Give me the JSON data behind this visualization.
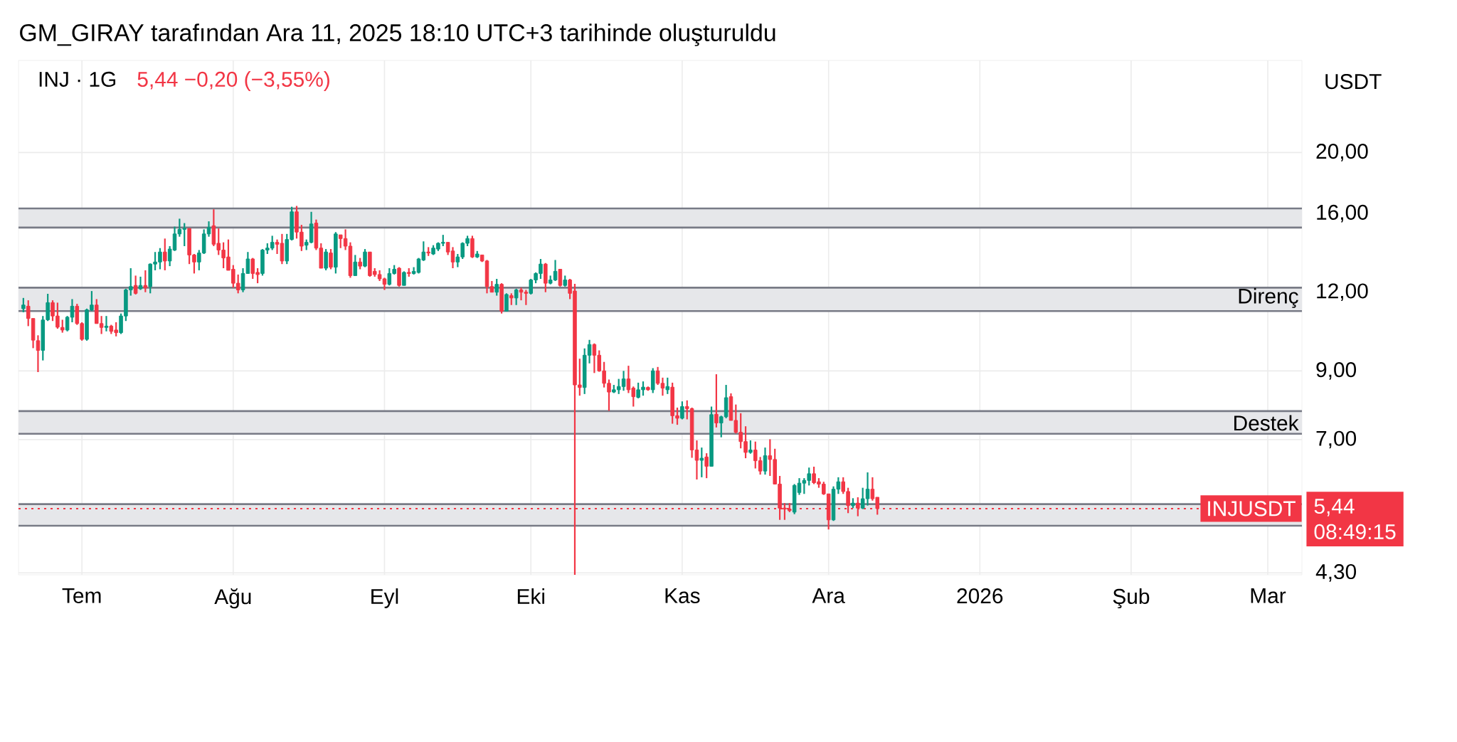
{
  "chart_data": {
    "type": "candlestick",
    "title": "INJ · 1G",
    "subtitle": "5,44  −0,20 (−3,55%)",
    "ylabel": "USDT",
    "annotations": [
      "GM_GIRAY tarafından Ara 11, 2025 18:10 UTC+3 tarihinde oluşturuldu",
      "5,44",
      "08:49:15"
    ],
    "x": [
      "2025-06-19",
      "2025-06-20",
      "2025-06-21",
      "2025-06-22",
      "2025-06-23",
      "2025-06-24",
      "2025-06-25",
      "2025-06-26",
      "2025-06-27",
      "2025-06-28",
      "2025-06-29",
      "2025-06-30",
      "2025-07-01",
      "2025-07-02",
      "2025-07-03",
      "2025-07-04",
      "2025-07-05",
      "2025-07-06",
      "2025-07-07",
      "2025-07-08",
      "2025-07-09",
      "2025-07-10",
      "2025-07-11",
      "2025-07-12",
      "2025-07-13",
      "2025-07-14",
      "2025-07-15",
      "2025-07-16",
      "2025-07-17",
      "2025-07-18",
      "2025-07-19",
      "2025-07-20",
      "2025-07-21",
      "2025-07-22",
      "2025-07-23",
      "2025-07-24",
      "2025-07-25",
      "2025-07-26",
      "2025-07-27",
      "2025-07-28",
      "2025-07-29",
      "2025-07-30",
      "2025-07-31",
      "2025-08-01",
      "2025-08-02",
      "2025-08-03",
      "2025-08-04",
      "2025-08-05",
      "2025-08-06",
      "2025-08-07",
      "2025-08-08",
      "2025-08-09",
      "2025-08-10",
      "2025-08-11",
      "2025-08-12",
      "2025-08-13",
      "2025-08-14",
      "2025-08-15",
      "2025-08-16",
      "2025-08-17",
      "2025-08-18",
      "2025-08-19",
      "2025-08-20",
      "2025-08-21",
      "2025-08-22",
      "2025-08-23",
      "2025-08-24",
      "2025-08-25",
      "2025-08-26",
      "2025-08-27",
      "2025-08-28",
      "2025-08-29",
      "2025-08-30",
      "2025-08-31",
      "2025-09-01",
      "2025-09-02",
      "2025-09-03",
      "2025-09-04",
      "2025-09-05",
      "2025-09-06",
      "2025-09-07",
      "2025-09-08",
      "2025-09-09",
      "2025-09-10",
      "2025-09-11",
      "2025-09-12",
      "2025-09-13",
      "2025-09-14",
      "2025-09-15",
      "2025-09-16",
      "2025-09-17",
      "2025-09-18",
      "2025-09-19",
      "2025-09-20",
      "2025-09-21",
      "2025-09-22",
      "2025-09-23",
      "2025-09-24",
      "2025-09-25",
      "2025-09-26",
      "2025-09-27",
      "2025-09-28",
      "2025-09-29",
      "2025-09-30",
      "2025-10-01",
      "2025-10-02",
      "2025-10-03",
      "2025-10-04",
      "2025-10-05",
      "2025-10-06",
      "2025-10-07",
      "2025-10-08",
      "2025-10-09",
      "2025-10-10",
      "2025-10-11",
      "2025-10-12",
      "2025-10-13",
      "2025-10-14",
      "2025-10-15",
      "2025-10-16",
      "2025-10-17",
      "2025-10-18",
      "2025-10-19",
      "2025-10-20",
      "2025-10-21",
      "2025-10-22",
      "2025-10-23",
      "2025-10-24",
      "2025-10-25",
      "2025-10-26",
      "2025-10-27",
      "2025-10-28",
      "2025-10-29",
      "2025-10-30",
      "2025-10-31",
      "2025-11-01",
      "2025-11-02",
      "2025-11-03",
      "2025-11-04",
      "2025-11-05",
      "2025-11-06",
      "2025-11-07",
      "2025-11-08",
      "2025-11-09",
      "2025-11-10",
      "2025-11-11",
      "2025-11-12",
      "2025-11-13",
      "2025-11-14",
      "2025-11-15",
      "2025-11-16",
      "2025-11-17",
      "2025-11-18",
      "2025-11-19",
      "2025-11-20",
      "2025-11-21",
      "2025-11-22",
      "2025-11-23",
      "2025-11-24",
      "2025-11-25",
      "2025-11-26",
      "2025-11-27",
      "2025-11-28",
      "2025-11-29",
      "2025-11-30",
      "2025-12-01",
      "2025-12-02",
      "2025-12-03",
      "2025-12-04",
      "2025-12-05",
      "2025-12-06",
      "2025-12-07",
      "2025-12-08",
      "2025-12-09",
      "2025-12-10",
      "2025-12-11"
    ],
    "ohlc": [
      [
        11.3,
        11.75,
        11.15,
        11.45
      ],
      [
        11.4,
        11.65,
        10.6,
        10.9
      ],
      [
        10.9,
        10.9,
        9.78,
        10.07
      ],
      [
        10.05,
        10.25,
        8.96,
        9.7
      ],
      [
        9.7,
        11.0,
        9.35,
        10.84
      ],
      [
        10.85,
        11.93,
        10.8,
        11.55
      ],
      [
        11.55,
        11.65,
        10.8,
        11.0
      ],
      [
        11.0,
        11.55,
        10.5,
        10.56
      ],
      [
        10.55,
        10.85,
        10.35,
        10.45
      ],
      [
        10.45,
        11.0,
        10.4,
        10.95
      ],
      [
        10.95,
        11.7,
        10.75,
        11.4
      ],
      [
        11.4,
        11.5,
        10.65,
        10.7
      ],
      [
        10.7,
        10.75,
        10.05,
        10.1
      ],
      [
        10.1,
        11.3,
        10.05,
        11.25
      ],
      [
        11.25,
        12.05,
        11.2,
        11.45
      ],
      [
        11.45,
        11.7,
        10.7,
        10.7
      ],
      [
        10.7,
        11.0,
        10.3,
        10.55
      ],
      [
        10.55,
        11.0,
        10.4,
        10.6
      ],
      [
        10.6,
        10.65,
        10.3,
        10.4
      ],
      [
        10.45,
        10.75,
        10.21,
        10.35
      ],
      [
        10.35,
        11.1,
        10.3,
        11.0
      ],
      [
        11.0,
        12.15,
        10.8,
        12.1
      ],
      [
        12.1,
        13.1,
        11.85,
        12.25
      ],
      [
        12.3,
        12.75,
        11.9,
        11.95
      ],
      [
        12.15,
        12.7,
        12.1,
        12.3
      ],
      [
        12.3,
        13.0,
        12.0,
        12.2
      ],
      [
        12.25,
        13.33,
        11.95,
        13.3
      ],
      [
        13.3,
        13.9,
        13.0,
        13.4
      ],
      [
        13.4,
        14.1,
        13.05,
        13.9
      ],
      [
        13.9,
        14.6,
        13.0,
        13.45
      ],
      [
        13.45,
        14.2,
        13.2,
        14.05
      ],
      [
        14.0,
        15.25,
        13.95,
        14.85
      ],
      [
        14.85,
        15.7,
        14.7,
        15.1
      ],
      [
        15.1,
        15.45,
        14.2,
        15.15
      ],
      [
        15.15,
        15.15,
        13.3,
        13.75
      ],
      [
        13.75,
        13.8,
        12.85,
        13.4
      ],
      [
        13.4,
        14.0,
        13.0,
        13.85
      ],
      [
        13.85,
        15.1,
        13.8,
        14.85
      ],
      [
        14.85,
        15.55,
        14.7,
        15.2
      ],
      [
        15.3,
        16.25,
        14.2,
        14.3
      ],
      [
        14.35,
        15.15,
        13.75,
        14.0
      ],
      [
        14.0,
        14.4,
        13.1,
        13.6
      ],
      [
        13.65,
        14.55,
        13.0,
        13.0
      ],
      [
        13.05,
        13.25,
        12.2,
        12.4
      ],
      [
        12.4,
        12.8,
        11.95,
        12.1
      ],
      [
        12.1,
        13.1,
        12.0,
        12.85
      ],
      [
        12.85,
        13.9,
        12.85,
        13.55
      ],
      [
        13.55,
        13.6,
        12.6,
        12.85
      ],
      [
        12.9,
        13.1,
        12.4,
        12.8
      ],
      [
        12.85,
        14.05,
        12.75,
        14.0
      ],
      [
        14.0,
        14.35,
        13.8,
        14.1
      ],
      [
        14.1,
        14.75,
        14.0,
        14.4
      ],
      [
        14.4,
        14.55,
        13.8,
        14.3
      ],
      [
        14.35,
        14.85,
        13.3,
        13.45
      ],
      [
        13.45,
        14.85,
        13.3,
        14.55
      ],
      [
        14.55,
        16.4,
        14.5,
        16.1
      ],
      [
        16.1,
        16.45,
        14.6,
        14.95
      ],
      [
        14.95,
        15.35,
        13.95,
        14.2
      ],
      [
        14.25,
        14.55,
        14.0,
        14.4
      ],
      [
        14.4,
        16.1,
        14.35,
        15.4
      ],
      [
        15.45,
        15.65,
        14.0,
        14.1
      ],
      [
        14.1,
        14.35,
        13.1,
        13.1
      ],
      [
        13.1,
        14.05,
        13.0,
        13.9
      ],
      [
        13.85,
        14.05,
        13.05,
        13.15
      ],
      [
        13.15,
        14.95,
        12.85,
        14.85
      ],
      [
        14.8,
        14.8,
        14.1,
        14.6
      ],
      [
        14.6,
        15.1,
        14.0,
        14.2
      ],
      [
        14.2,
        14.4,
        12.65,
        12.75
      ],
      [
        12.75,
        13.75,
        12.75,
        13.4
      ],
      [
        13.4,
        13.6,
        13.05,
        13.2
      ],
      [
        13.2,
        14.05,
        13.15,
        13.9
      ],
      [
        13.9,
        13.9,
        12.7,
        12.75
      ],
      [
        12.95,
        13.1,
        12.7,
        12.8
      ],
      [
        12.8,
        13.0,
        12.5,
        12.6
      ],
      [
        12.6,
        12.65,
        12.1,
        12.35
      ],
      [
        12.35,
        13.1,
        12.3,
        12.85
      ],
      [
        12.85,
        13.25,
        12.8,
        13.05
      ],
      [
        13.1,
        13.15,
        12.25,
        12.3
      ],
      [
        12.3,
        12.95,
        12.3,
        12.9
      ],
      [
        12.9,
        13.1,
        12.7,
        12.85
      ],
      [
        12.85,
        13.15,
        12.8,
        12.95
      ],
      [
        12.9,
        13.6,
        12.85,
        13.55
      ],
      [
        13.5,
        14.45,
        13.45,
        13.9
      ],
      [
        13.9,
        14.15,
        13.7,
        13.85
      ],
      [
        13.8,
        14.25,
        13.75,
        14.1
      ],
      [
        14.05,
        14.4,
        13.95,
        14.35
      ],
      [
        14.35,
        14.8,
        14.2,
        14.4
      ],
      [
        14.4,
        14.4,
        13.75,
        13.9
      ],
      [
        13.95,
        14.15,
        13.1,
        13.4
      ],
      [
        13.4,
        13.8,
        13.15,
        13.65
      ],
      [
        13.65,
        14.4,
        13.55,
        14.35
      ],
      [
        14.35,
        14.75,
        14.2,
        14.6
      ],
      [
        14.6,
        14.75,
        13.6,
        13.65
      ],
      [
        13.65,
        13.95,
        13.6,
        13.8
      ],
      [
        13.75,
        13.75,
        13.4,
        13.45
      ],
      [
        13.45,
        13.5,
        11.95,
        12.25
      ],
      [
        12.25,
        12.5,
        12.0,
        12.0
      ],
      [
        12.0,
        12.6,
        11.85,
        12.35
      ],
      [
        12.35,
        12.4,
        11.1,
        11.2
      ],
      [
        11.2,
        11.95,
        11.2,
        11.9
      ],
      [
        11.85,
        11.95,
        11.45,
        11.75
      ],
      [
        11.75,
        12.15,
        11.45,
        12.1
      ],
      [
        12.1,
        12.2,
        11.65,
        12.0
      ],
      [
        12.0,
        12.1,
        11.45,
        11.95
      ],
      [
        11.95,
        12.6,
        11.9,
        12.55
      ],
      [
        12.55,
        12.9,
        12.4,
        12.85
      ],
      [
        12.85,
        13.55,
        12.6,
        13.3
      ],
      [
        13.3,
        13.35,
        12.0,
        12.4
      ],
      [
        12.4,
        12.75,
        12.35,
        12.55
      ],
      [
        12.55,
        13.5,
        12.5,
        12.95
      ],
      [
        13.05,
        13.05,
        12.25,
        12.3
      ],
      [
        12.3,
        12.75,
        12.25,
        12.55
      ],
      [
        12.55,
        12.6,
        11.7,
        11.95
      ],
      [
        12.05,
        12.37,
        4.27,
        8.55
      ],
      [
        8.55,
        9.41,
        8.22,
        8.47
      ],
      [
        8.47,
        9.77,
        8.27,
        9.53
      ],
      [
        9.53,
        10.08,
        9.25,
        9.91
      ],
      [
        9.91,
        9.95,
        8.93,
        9.53
      ],
      [
        9.53,
        9.7,
        8.97,
        9.0
      ],
      [
        9.0,
        9.3,
        8.47,
        8.6
      ],
      [
        8.6,
        8.72,
        7.78,
        8.33
      ],
      [
        8.33,
        8.55,
        8.3,
        8.4
      ],
      [
        8.4,
        8.74,
        8.27,
        8.5
      ],
      [
        8.5,
        9.0,
        8.37,
        8.74
      ],
      [
        8.74,
        9.17,
        8.3,
        8.4
      ],
      [
        8.45,
        8.5,
        7.9,
        8.19
      ],
      [
        8.17,
        8.62,
        8.14,
        8.4
      ],
      [
        8.4,
        8.66,
        8.22,
        8.48
      ],
      [
        8.47,
        8.5,
        8.37,
        8.4
      ],
      [
        8.4,
        9.09,
        8.3,
        9.0
      ],
      [
        9.0,
        9.13,
        8.55,
        8.6
      ],
      [
        8.6,
        8.78,
        8.22,
        8.45
      ],
      [
        8.4,
        8.78,
        8.27,
        8.5
      ],
      [
        8.48,
        8.62,
        7.42,
        7.64
      ],
      [
        7.64,
        7.87,
        7.39,
        7.57
      ],
      [
        7.57,
        8.05,
        7.54,
        7.9
      ],
      [
        7.9,
        8.08,
        7.54,
        7.84
      ],
      [
        7.84,
        7.87,
        6.55,
        6.74
      ],
      [
        6.74,
        6.98,
        6.05,
        6.49
      ],
      [
        6.49,
        6.8,
        6.1,
        6.54
      ],
      [
        6.57,
        6.66,
        6.08,
        6.35
      ],
      [
        6.35,
        7.9,
        6.35,
        7.67
      ],
      [
        7.68,
        8.89,
        7.32,
        7.44
      ],
      [
        7.44,
        7.64,
        7.06,
        7.61
      ],
      [
        7.61,
        8.55,
        7.57,
        8.16
      ],
      [
        8.19,
        8.29,
        7.51,
        7.51
      ],
      [
        7.51,
        7.96,
        7.16,
        7.19
      ],
      [
        7.19,
        7.71,
        6.78,
        6.95
      ],
      [
        6.95,
        7.35,
        6.54,
        6.68
      ],
      [
        6.68,
        6.98,
        6.65,
        6.74
      ],
      [
        6.74,
        6.95,
        6.3,
        6.48
      ],
      [
        6.48,
        6.57,
        6.16,
        6.24
      ],
      [
        6.24,
        6.8,
        6.16,
        6.6
      ],
      [
        6.6,
        7.01,
        6.13,
        6.51
      ],
      [
        6.51,
        6.77,
        5.95,
        5.95
      ],
      [
        5.95,
        6.13,
        5.22,
        5.45
      ],
      [
        5.45,
        5.55,
        5.22,
        5.43
      ],
      [
        5.43,
        5.55,
        5.37,
        5.4
      ],
      [
        5.37,
        5.95,
        5.33,
        5.92
      ],
      [
        5.77,
        6.08,
        5.72,
        5.97
      ],
      [
        5.97,
        6.08,
        5.74,
        6.03
      ],
      [
        6.03,
        6.32,
        5.92,
        6.18
      ],
      [
        6.18,
        6.34,
        5.95,
        5.98
      ],
      [
        6.0,
        6.08,
        5.87,
        5.95
      ],
      [
        5.95,
        6.0,
        5.72,
        5.74
      ],
      [
        5.74,
        5.74,
        5.04,
        5.22
      ],
      [
        5.22,
        5.9,
        5.2,
        5.84
      ],
      [
        5.84,
        6.1,
        5.74,
        6.0
      ],
      [
        6.0,
        6.1,
        5.74,
        5.79
      ],
      [
        5.79,
        5.87,
        5.35,
        5.5
      ],
      [
        5.5,
        5.65,
        5.45,
        5.55
      ],
      [
        5.55,
        5.67,
        5.29,
        5.45
      ],
      [
        5.45,
        5.87,
        5.43,
        5.64
      ],
      [
        5.64,
        6.21,
        5.5,
        5.84
      ],
      [
        5.84,
        6.1,
        5.6,
        5.64
      ],
      [
        5.67,
        5.67,
        5.32,
        5.44
      ]
    ],
    "colors": [
      "#089981",
      "#f23645",
      "#f23645",
      "#f23645",
      "#089981",
      "#089981",
      "#f23645",
      "#f23645",
      "#f23645",
      "#089981",
      "#089981",
      "#f23645",
      "#f23645",
      "#089981",
      "#089981",
      "#f23645",
      "#f23645",
      "#089981",
      "#f23645",
      "#f23645",
      "#089981",
      "#089981",
      "#089981",
      "#f23645",
      "#089981",
      "#f23645",
      "#089981",
      "#089981",
      "#089981",
      "#f23645",
      "#089981",
      "#089981",
      "#089981",
      "#089981",
      "#f23645",
      "#f23645",
      "#089981",
      "#089981",
      "#089981",
      "#f23645",
      "#f23645",
      "#f23645",
      "#f23645",
      "#f23645",
      "#f23645",
      "#089981",
      "#089981",
      "#f23645",
      "#f23645",
      "#089981",
      "#089981",
      "#089981",
      "#f23645",
      "#f23645",
      "#089981",
      "#089981",
      "#f23645",
      "#f23645",
      "#089981",
      "#089981",
      "#f23645",
      "#f23645",
      "#089981",
      "#f23645",
      "#089981",
      "#f23645",
      "#f23645",
      "#f23645",
      "#089981",
      "#f23645",
      "#089981",
      "#f23645",
      "#f23645",
      "#f23645",
      "#f23645",
      "#089981",
      "#089981",
      "#f23645",
      "#089981",
      "#f23645",
      "#089981",
      "#089981",
      "#089981",
      "#f23645",
      "#089981",
      "#089981",
      "#089981",
      "#f23645",
      "#f23645",
      "#089981",
      "#089981",
      "#089981",
      "#f23645",
      "#089981",
      "#f23645",
      "#f23645",
      "#f23645",
      "#089981",
      "#f23645",
      "#089981",
      "#f23645",
      "#089981",
      "#f23645",
      "#f23645",
      "#089981",
      "#089981",
      "#089981",
      "#f23645",
      "#089981",
      "#089981",
      "#f23645",
      "#089981",
      "#f23645",
      "#f23645",
      "#f23645",
      "#089981",
      "#089981",
      "#f23645",
      "#f23645",
      "#f23645",
      "#f23645",
      "#089981",
      "#089981",
      "#089981",
      "#f23645",
      "#f23645",
      "#089981",
      "#089981",
      "#f23645",
      "#089981",
      "#f23645",
      "#f23645",
      "#089981",
      "#f23645",
      "#f23645",
      "#089981",
      "#f23645",
      "#f23645",
      "#f23645",
      "#089981",
      "#f23645",
      "#089981",
      "#f23645",
      "#089981",
      "#089981",
      "#f23645",
      "#f23645",
      "#f23645",
      "#f23645",
      "#089981",
      "#f23645",
      "#f23645",
      "#089981",
      "#f23645",
      "#f23645",
      "#f23645",
      "#f23645",
      "#f23645",
      "#089981",
      "#089981",
      "#089981",
      "#089981",
      "#f23645",
      "#f23645",
      "#f23645",
      "#f23645",
      "#089981",
      "#089981",
      "#f23645",
      "#f23645",
      "#089981",
      "#f23645",
      "#089981",
      "#089981",
      "#f23645",
      "#f23645"
    ],
    "xlim": [
      "2025-06-18",
      "2026-03-08"
    ],
    "xticks": [
      {
        "value": "2025-07-01",
        "label": "Tem"
      },
      {
        "value": "2025-08-01",
        "label": "Ağu"
      },
      {
        "value": "2025-09-01",
        "label": "Eyl"
      },
      {
        "value": "2025-10-01",
        "label": "Eki"
      },
      {
        "value": "2025-11-01",
        "label": "Kas"
      },
      {
        "value": "2025-12-01",
        "label": "Ara"
      },
      {
        "value": "2026-01-01",
        "label": "2026"
      },
      {
        "value": "2026-02-01",
        "label": "Şub"
      },
      {
        "value": "2026-03-01",
        "label": "Mar"
      }
    ],
    "ylim": [
      4.27,
      28
    ],
    "yticks": [
      {
        "value": 4.3,
        "label": "4,30"
      },
      {
        "value": 7,
        "label": "7,00"
      },
      {
        "value": 9,
        "label": "9,00"
      },
      {
        "value": 12,
        "label": "12,00"
      },
      {
        "value": 16,
        "label": "16,00"
      },
      {
        "value": 20,
        "label": "20,00"
      }
    ],
    "log": "y",
    "grid": true,
    "bands": [
      {
        "axis": "y",
        "from": 15.2,
        "to": 16.3,
        "color": "#e6e7ea"
      },
      {
        "axis": "y",
        "from": 11.2,
        "to": 12.2,
        "label": "Direnç",
        "color": "#e6e7ea"
      },
      {
        "axis": "y",
        "from": 7.15,
        "to": 7.77,
        "label": "Destek",
        "color": "#e6e7ea"
      },
      {
        "axis": "y",
        "from": 5.11,
        "to": 5.53,
        "color": "#e6e7ea"
      }
    ],
    "ref_lines": [
      {
        "axis": "y",
        "value": 5.44,
        "label": "INJUSDT",
        "color": "#f23645",
        "line_style": "dotted"
      }
    ]
  }
}
